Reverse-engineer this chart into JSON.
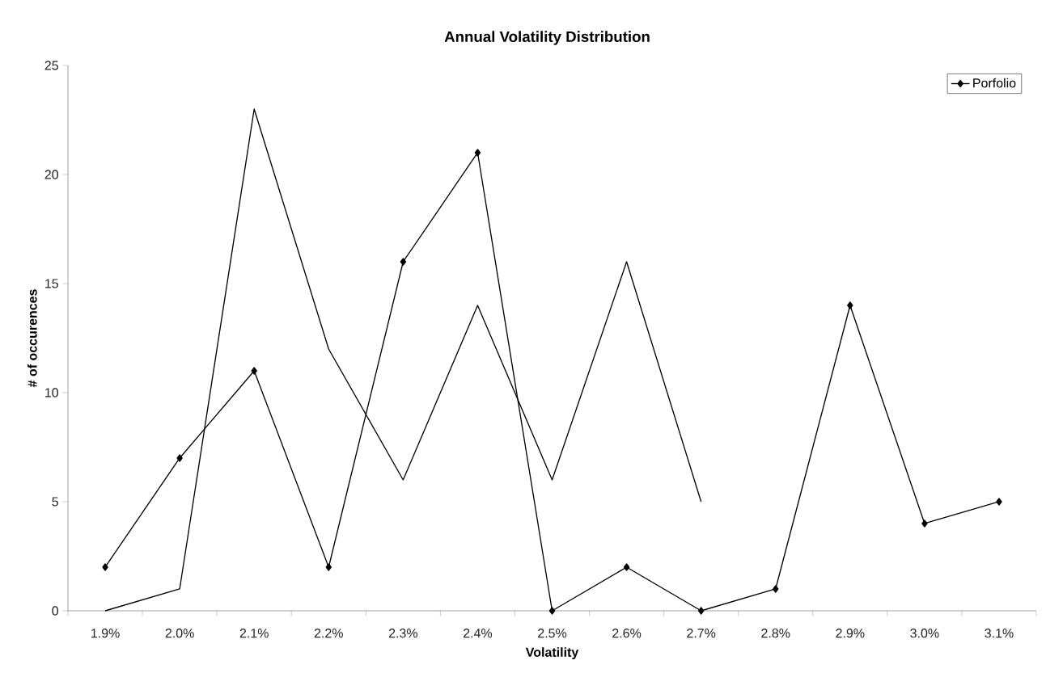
{
  "chart_data": {
    "type": "line",
    "title": "Annual Volatility Distribution",
    "xlabel": "Volatility",
    "ylabel": "# of occurences",
    "categories": [
      "1.9%",
      "2.0%",
      "2.1%",
      "2.2%",
      "2.3%",
      "2.4%",
      "2.5%",
      "2.6%",
      "2.7%",
      "2.8%",
      "2.9%",
      "3.0%",
      "3.1%"
    ],
    "series": [
      {
        "name": "Porfolio",
        "color": "#000000",
        "marker": "diamond",
        "values": [
          2,
          7,
          11,
          2,
          16,
          21,
          0,
          2,
          0,
          1,
          14,
          4,
          5
        ]
      },
      {
        "color": "#000000",
        "marker": "none",
        "values": [
          0,
          1,
          23,
          12,
          6,
          14,
          6,
          16,
          5,
          null,
          null,
          null,
          null
        ]
      }
    ],
    "ylim": [
      0,
      25
    ],
    "yticks": [
      0,
      5,
      10,
      15,
      20,
      25
    ],
    "grid": false,
    "legend": "top right",
    "line_style": "solid"
  }
}
